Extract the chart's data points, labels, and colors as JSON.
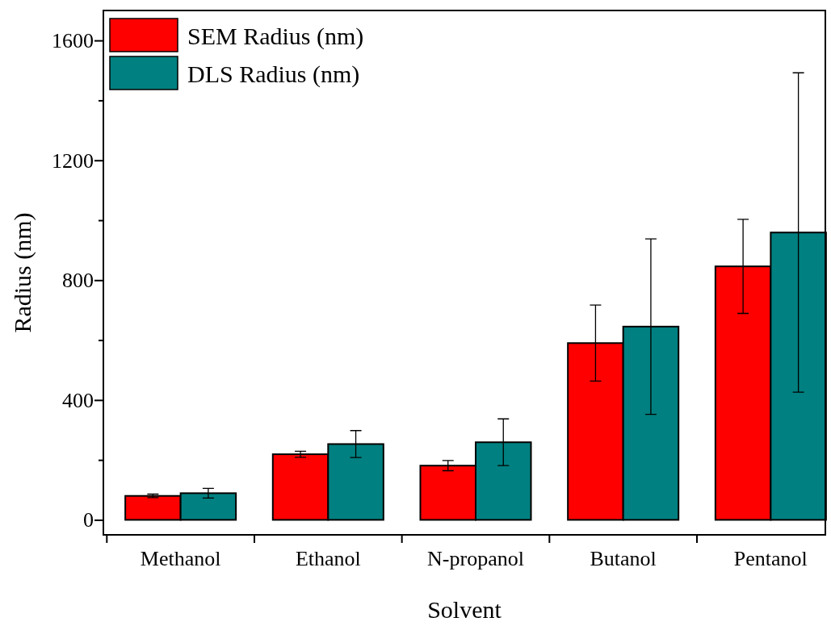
{
  "chart_data": {
    "type": "bar",
    "xlabel": "Solvent",
    "ylabel": "Radius (nm)",
    "categories": [
      "Methanol",
      "Ethanol",
      "N-propanol",
      "Butanol",
      "Pentanol"
    ],
    "series": [
      {
        "name": "SEM Radius (nm)",
        "color": "#ff0000",
        "values": [
          80,
          219,
          181,
          590,
          846
        ],
        "errors": [
          6,
          10,
          17,
          127,
          157
        ]
      },
      {
        "name": "DLS Radius (nm)",
        "color": "#008080",
        "values": [
          89,
          253,
          259,
          645,
          959
        ],
        "errors": [
          16,
          45,
          78,
          293,
          533
        ]
      }
    ],
    "ylim": [
      -50,
      1700
    ],
    "yticks": [
      0,
      {
        "value": 200,
        "label": null
      },
      400,
      {
        "value": 600,
        "label": null
      },
      800,
      {
        "value": 1000,
        "label": null
      },
      1200,
      {
        "value": 1400,
        "label": null
      },
      1600
    ],
    "grid": false,
    "legend": "top left"
  }
}
